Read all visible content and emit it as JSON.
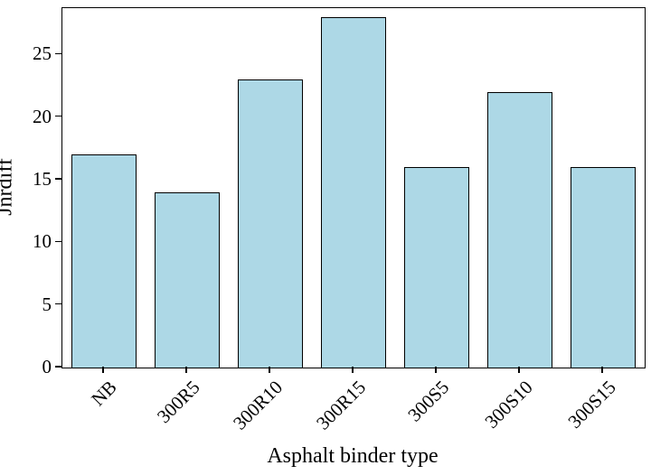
{
  "chart_data": {
    "type": "bar",
    "categories": [
      "NB",
      "300R5",
      "300R10",
      "300R15",
      "300S5",
      "300S10",
      "300S15"
    ],
    "values": [
      17,
      14,
      23,
      28,
      16,
      22,
      16
    ],
    "title": "",
    "xlabel": "Asphalt binder type",
    "ylabel": "Jnrdiff",
    "ylim": [
      0,
      28.7
    ],
    "yticks": [
      0,
      5,
      10,
      15,
      20,
      25
    ],
    "grid": false,
    "legend": "none",
    "bar_color": "#ADD8E6",
    "bar_edge_color": "#000000"
  }
}
